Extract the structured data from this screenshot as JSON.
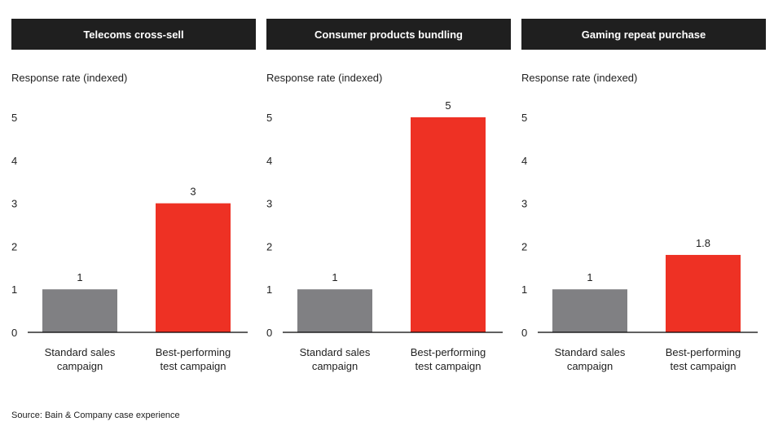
{
  "colors": {
    "standard": "#808083",
    "best": "#ee3124",
    "header_bg": "#1f1f1f",
    "axis": "#000000"
  },
  "chart_data": [
    {
      "type": "bar",
      "title": "Telecoms cross-sell",
      "ylabel": "Response rate (indexed)",
      "ylim": [
        0,
        5
      ],
      "yticks": [
        0,
        1,
        2,
        3,
        4,
        5
      ],
      "categories": [
        "Standard sales campaign",
        "Best-performing test campaign"
      ],
      "category_lines": [
        [
          "Standard sales",
          "campaign"
        ],
        [
          "Best-performing",
          "test campaign"
        ]
      ],
      "values": [
        1,
        3
      ],
      "labels": [
        "1",
        "3"
      ]
    },
    {
      "type": "bar",
      "title": "Consumer products bundling",
      "ylabel": "Response rate (indexed)",
      "ylim": [
        0,
        5
      ],
      "yticks": [
        0,
        1,
        2,
        3,
        4,
        5
      ],
      "categories": [
        "Standard sales campaign",
        "Best-performing test campaign"
      ],
      "category_lines": [
        [
          "Standard sales",
          "campaign"
        ],
        [
          "Best-performing",
          "test campaign"
        ]
      ],
      "values": [
        1,
        5
      ],
      "labels": [
        "1",
        "5"
      ]
    },
    {
      "type": "bar",
      "title": "Gaming repeat purchase",
      "ylabel": "Response rate (indexed)",
      "ylim": [
        0,
        5
      ],
      "yticks": [
        0,
        1,
        2,
        3,
        4,
        5
      ],
      "categories": [
        "Standard sales campaign",
        "Best-performing test campaign"
      ],
      "category_lines": [
        [
          "Standard sales",
          "campaign"
        ],
        [
          "Best-performing",
          "test campaign"
        ]
      ],
      "values": [
        1,
        1.8
      ],
      "labels": [
        "1",
        "1.8"
      ]
    }
  ],
  "source": "Source: Bain & Company case experience"
}
